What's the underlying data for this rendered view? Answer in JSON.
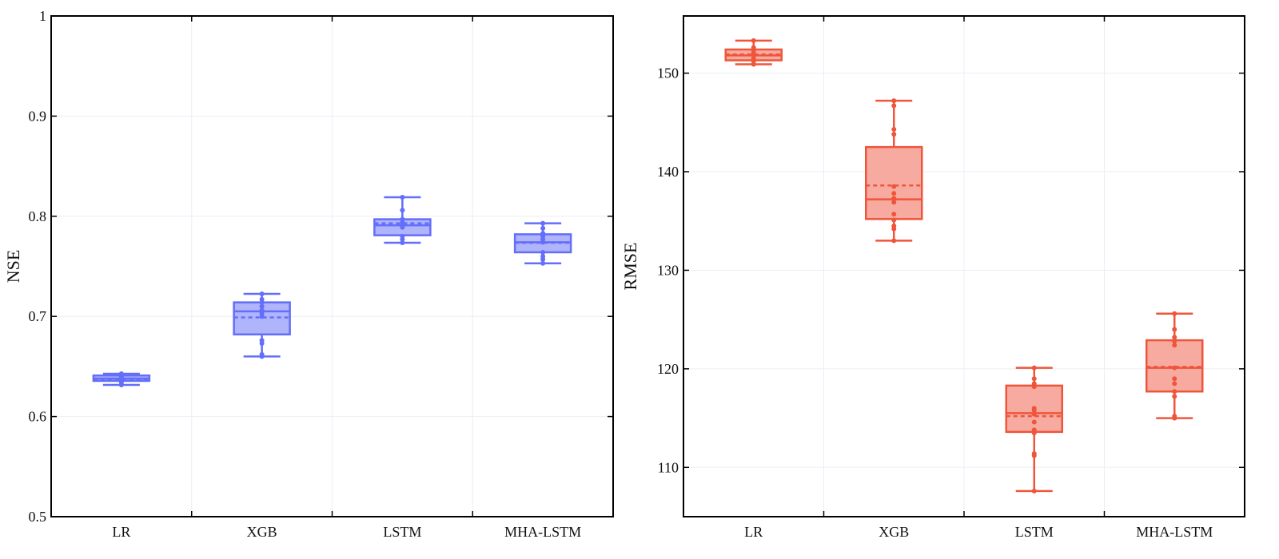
{
  "chart_data": [
    {
      "type": "box",
      "ylabel": "NSE",
      "categories": [
        "LR",
        "XGB",
        "LSTM",
        "MHA-LSTM"
      ],
      "ylim": [
        0.5,
        1.0
      ],
      "yticks": [
        0.5,
        0.6,
        0.7,
        0.8,
        0.9,
        1.0
      ],
      "ytick_labels": [
        "0.5",
        "0.6",
        "0.7",
        "0.8",
        "0.9",
        "1"
      ],
      "color": "#636EFA",
      "fill": "#AFB4FB",
      "grid": true,
      "boxes": [
        {
          "name": "LR",
          "min": 0.6316,
          "q1": 0.6356,
          "median": 0.638,
          "mean": 0.637,
          "q3": 0.641,
          "max": 0.6427,
          "points": [
            0.6316,
            0.634,
            0.636,
            0.637,
            0.638,
            0.639,
            0.64,
            0.641,
            0.6427
          ]
        },
        {
          "name": "XGB",
          "min": 0.66,
          "q1": 0.682,
          "median": 0.705,
          "mean": 0.699,
          "q3": 0.714,
          "max": 0.7225,
          "points": [
            0.66,
            0.662,
            0.673,
            0.676,
            0.7,
            0.703,
            0.706,
            0.71,
            0.714,
            0.717,
            0.7225
          ]
        },
        {
          "name": "LSTM",
          "min": 0.7735,
          "q1": 0.781,
          "median": 0.791,
          "mean": 0.793,
          "q3": 0.797,
          "max": 0.819,
          "points": [
            0.7735,
            0.777,
            0.78,
            0.789,
            0.791,
            0.794,
            0.797,
            0.806,
            0.819
          ]
        },
        {
          "name": "MHA-LSTM",
          "min": 0.753,
          "q1": 0.764,
          "median": 0.774,
          "mean": 0.7735,
          "q3": 0.782,
          "max": 0.793,
          "points": [
            0.753,
            0.757,
            0.76,
            0.764,
            0.774,
            0.777,
            0.78,
            0.783,
            0.788,
            0.793
          ]
        }
      ]
    },
    {
      "type": "box",
      "ylabel": "RMSE",
      "categories": [
        "LR",
        "XGB",
        "LSTM",
        "MHA-LSTM"
      ],
      "ylim": [
        105.0,
        155.8
      ],
      "yticks": [
        110,
        120,
        130,
        140,
        150
      ],
      "ytick_labels": [
        "110",
        "120",
        "130",
        "140",
        "150"
      ],
      "color": "#EF553B",
      "fill": "#F7ABA0",
      "grid": true,
      "boxes": [
        {
          "name": "LR",
          "min": 150.9,
          "q1": 151.3,
          "median": 151.8,
          "mean": 151.9,
          "q3": 152.4,
          "max": 153.3,
          "points": [
            150.9,
            151.2,
            151.5,
            151.8,
            152.0,
            152.3,
            152.6,
            153.3
          ]
        },
        {
          "name": "XGB",
          "min": 133.0,
          "q1": 135.2,
          "median": 137.2,
          "mean": 138.6,
          "q3": 142.5,
          "max": 147.2,
          "points": [
            133.0,
            134.2,
            134.5,
            135.1,
            135.7,
            136.9,
            137.3,
            137.8,
            138.5,
            143.8,
            144.3,
            146.7,
            147.2
          ]
        },
        {
          "name": "LSTM",
          "min": 107.6,
          "q1": 113.6,
          "median": 115.5,
          "mean": 115.2,
          "q3": 118.3,
          "max": 120.1,
          "points": [
            107.6,
            111.2,
            111.4,
            113.5,
            113.8,
            114.6,
            115.4,
            115.8,
            116.0,
            118.2,
            118.5,
            119.0,
            120.1
          ]
        },
        {
          "name": "MHA-LSTM",
          "min": 115.0,
          "q1": 117.7,
          "median": 120.1,
          "mean": 120.2,
          "q3": 122.9,
          "max": 125.6,
          "points": [
            115.0,
            115.2,
            117.2,
            117.7,
            118.5,
            119.0,
            120.1,
            122.4,
            122.8,
            123.2,
            124.0,
            125.6
          ]
        }
      ]
    }
  ]
}
